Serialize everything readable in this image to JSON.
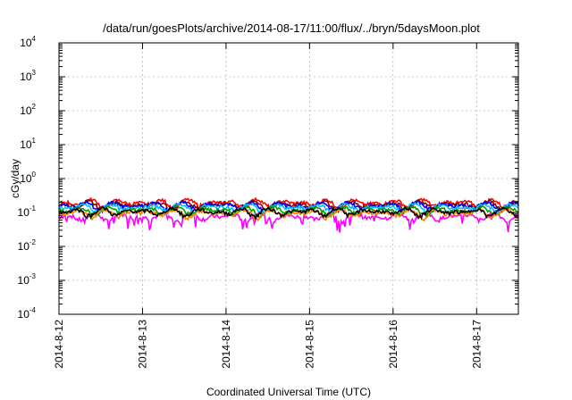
{
  "chart_data": {
    "type": "line",
    "title": "/data/run/goesPlots/archive/2014-08-17/11:00/flux/../bryn/5daysMoon.plot",
    "xlabel": "Coordinated Universal Time (UTC)",
    "ylabel": "cGy/day",
    "yscale": "log",
    "ylim": [
      0.0001,
      10000
    ],
    "xlim": [
      0,
      5.5
    ],
    "grid": true,
    "y_tick_base": "10",
    "y_ticks": [
      {
        "exp": "4",
        "value": 10000
      },
      {
        "exp": "3",
        "value": 1000
      },
      {
        "exp": "2",
        "value": 100
      },
      {
        "exp": "1",
        "value": 10
      },
      {
        "exp": "0",
        "value": 1
      },
      {
        "exp": "-1",
        "value": 0.1
      },
      {
        "exp": "-2",
        "value": 0.01
      },
      {
        "exp": "-3",
        "value": 0.001
      },
      {
        "exp": "-4",
        "value": 0.0001
      }
    ],
    "x_ticks": [
      {
        "label": "2014-8-12",
        "value": 0
      },
      {
        "label": "2014-8-13",
        "value": 1
      },
      {
        "label": "2014-8-14",
        "value": 2
      },
      {
        "label": "2014-8-15",
        "value": 3
      },
      {
        "label": "2014-8-16",
        "value": 4
      },
      {
        "label": "2014-8-17",
        "value": 5
      }
    ],
    "series": [
      {
        "color": "#ff00ff",
        "level": 0.075
      },
      {
        "color": "#ff0000",
        "level": 0.19
      },
      {
        "color": "#8b0000",
        "level": 0.17
      },
      {
        "color": "#0000ff",
        "level": 0.16
      },
      {
        "color": "#00bfff",
        "level": 0.14
      },
      {
        "color": "#00a000",
        "level": 0.115
      },
      {
        "color": "#ff7f00",
        "level": 0.095
      },
      {
        "color": "#000000",
        "level": 0.105
      }
    ]
  }
}
